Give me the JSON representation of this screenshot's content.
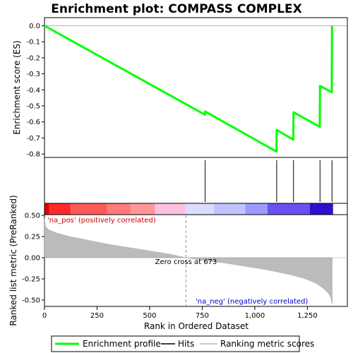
{
  "chart_data": {
    "type": "line",
    "title": "Enrichment plot: COMPASS COMPLEX",
    "top_panel": {
      "ylabel": "Enrichment score (ES)",
      "ylim": [
        -0.82,
        0.03
      ],
      "yticks": [
        0.0,
        -0.1,
        -0.2,
        -0.3,
        -0.4,
        -0.5,
        -0.6,
        -0.7,
        -0.8
      ],
      "ytick_labels": [
        "0.0",
        "-0.1",
        "-0.2",
        "-0.3",
        "-0.4",
        "-0.5",
        "-0.6",
        "-0.7",
        "-0.8"
      ],
      "series": [
        {
          "name": "Enrichment profile",
          "color": "#00ff00",
          "x": [
            0,
            763,
            764,
            1103,
            1104,
            1183,
            1184,
            1309,
            1310,
            1366,
            1367
          ],
          "y": [
            0.0,
            -0.555,
            -0.535,
            -0.785,
            -0.65,
            -0.71,
            -0.54,
            -0.63,
            -0.375,
            -0.415,
            0.0
          ]
        }
      ],
      "hits": [
        764,
        1104,
        1184,
        1310,
        1367
      ]
    },
    "bottom_panel": {
      "ylabel": "Ranked list metric (PreRanked)",
      "xlabel": "Rank in Ordered Dataset",
      "xlim": [
        0,
        1440
      ],
      "ylim": [
        -0.58,
        0.58
      ],
      "xticks": [
        0,
        250,
        500,
        750,
        1000,
        1250
      ],
      "xtick_labels": [
        "0",
        "250",
        "500",
        "750",
        "1,000",
        "1,250"
      ],
      "yticks": [
        0.5,
        0.25,
        0.0,
        -0.25,
        -0.5
      ],
      "ytick_labels": [
        "0.50",
        "0.25",
        "0.00",
        "-0.25",
        "-0.50"
      ],
      "metric_curve": {
        "x": [
          0,
          5,
          20,
          60,
          120,
          200,
          300,
          400,
          500,
          600,
          673,
          750,
          850,
          950,
          1050,
          1150,
          1230,
          1290,
          1330,
          1350,
          1362,
          1368
        ],
        "y": [
          0.46,
          0.37,
          0.33,
          0.29,
          0.25,
          0.21,
          0.16,
          0.12,
          0.08,
          0.04,
          0.0,
          -0.03,
          -0.06,
          -0.1,
          -0.14,
          -0.19,
          -0.24,
          -0.3,
          -0.37,
          -0.42,
          -0.48,
          -0.55
        ]
      },
      "zero_cross": 673,
      "zero_cross_label": "Zero cross at 673",
      "pos_label": "'na_pos' (positively correlated)",
      "neg_label": "'na_neg' (negatively correlated)",
      "pos_label_color": "#cc0000",
      "neg_label_color": "#0000cc",
      "heat_bands": [
        {
          "x0": 0,
          "x1": 22,
          "color": "#e00000"
        },
        {
          "x0": 22,
          "x1": 125,
          "color": "#ff2a2a"
        },
        {
          "x0": 125,
          "x1": 298,
          "color": "#ff5a5a"
        },
        {
          "x0": 298,
          "x1": 410,
          "color": "#ff7a7a"
        },
        {
          "x0": 410,
          "x1": 525,
          "color": "#ff9898"
        },
        {
          "x0": 525,
          "x1": 670,
          "color": "#ffc0e0"
        },
        {
          "x0": 670,
          "x1": 805,
          "color": "#dcdcff"
        },
        {
          "x0": 805,
          "x1": 955,
          "color": "#c2c2ff"
        },
        {
          "x0": 955,
          "x1": 1060,
          "color": "#9a9aff"
        },
        {
          "x0": 1060,
          "x1": 1262,
          "color": "#6a50f0"
        },
        {
          "x0": 1262,
          "x1": 1372,
          "color": "#3010cc"
        }
      ]
    },
    "legend": [
      {
        "label": "Enrichment profile",
        "color": "#00ff00",
        "style": "thick"
      },
      {
        "label": "Hits",
        "color": "#000000",
        "style": "line"
      },
      {
        "label": "Ranking metric scores",
        "color": "#bbbbbb",
        "style": "line"
      }
    ]
  }
}
